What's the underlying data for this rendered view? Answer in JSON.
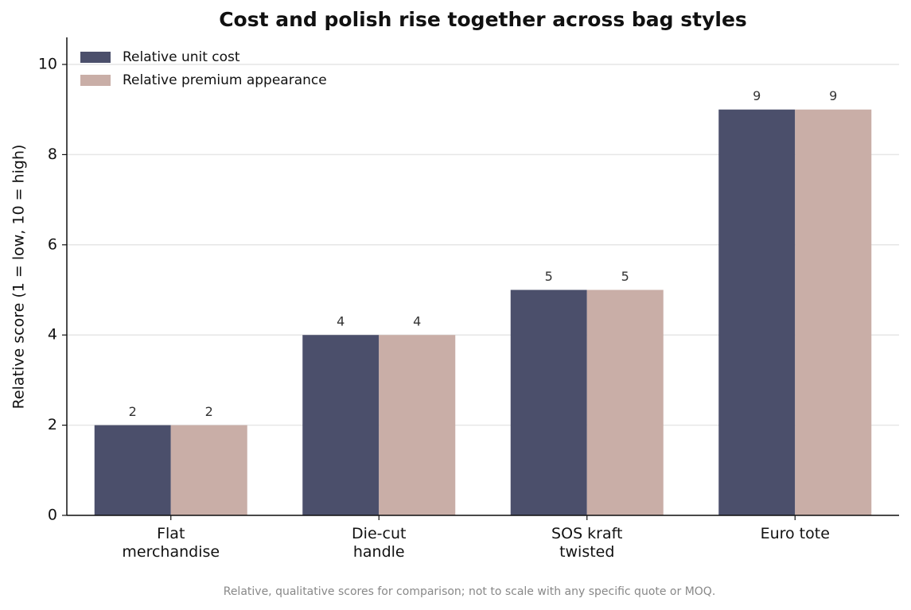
{
  "chart_data": {
    "type": "bar",
    "title": "Cost and polish rise together across bag styles",
    "y_label": "Relative score (1 = low, 10 = high)",
    "footnote": "Relative, qualitative scores for comparison; not to scale with any specific quote or MOQ.",
    "categories": [
      "Flat\nmerchandise",
      "Die-cut\nhandle",
      "SOS kraft\ntwisted",
      "Euro tote"
    ],
    "series": [
      {
        "name": "Relative unit cost",
        "color": "#4b4f6b",
        "values": [
          2,
          4,
          5,
          9
        ]
      },
      {
        "name": "Relative premium appearance",
        "color": "#c9aea7",
        "values": [
          2,
          4,
          5,
          9
        ]
      }
    ],
    "ylim": [
      0,
      10.6
    ],
    "yticks": [
      0,
      2,
      4,
      6,
      8,
      10
    ],
    "grid": true,
    "legend": "upper left"
  }
}
